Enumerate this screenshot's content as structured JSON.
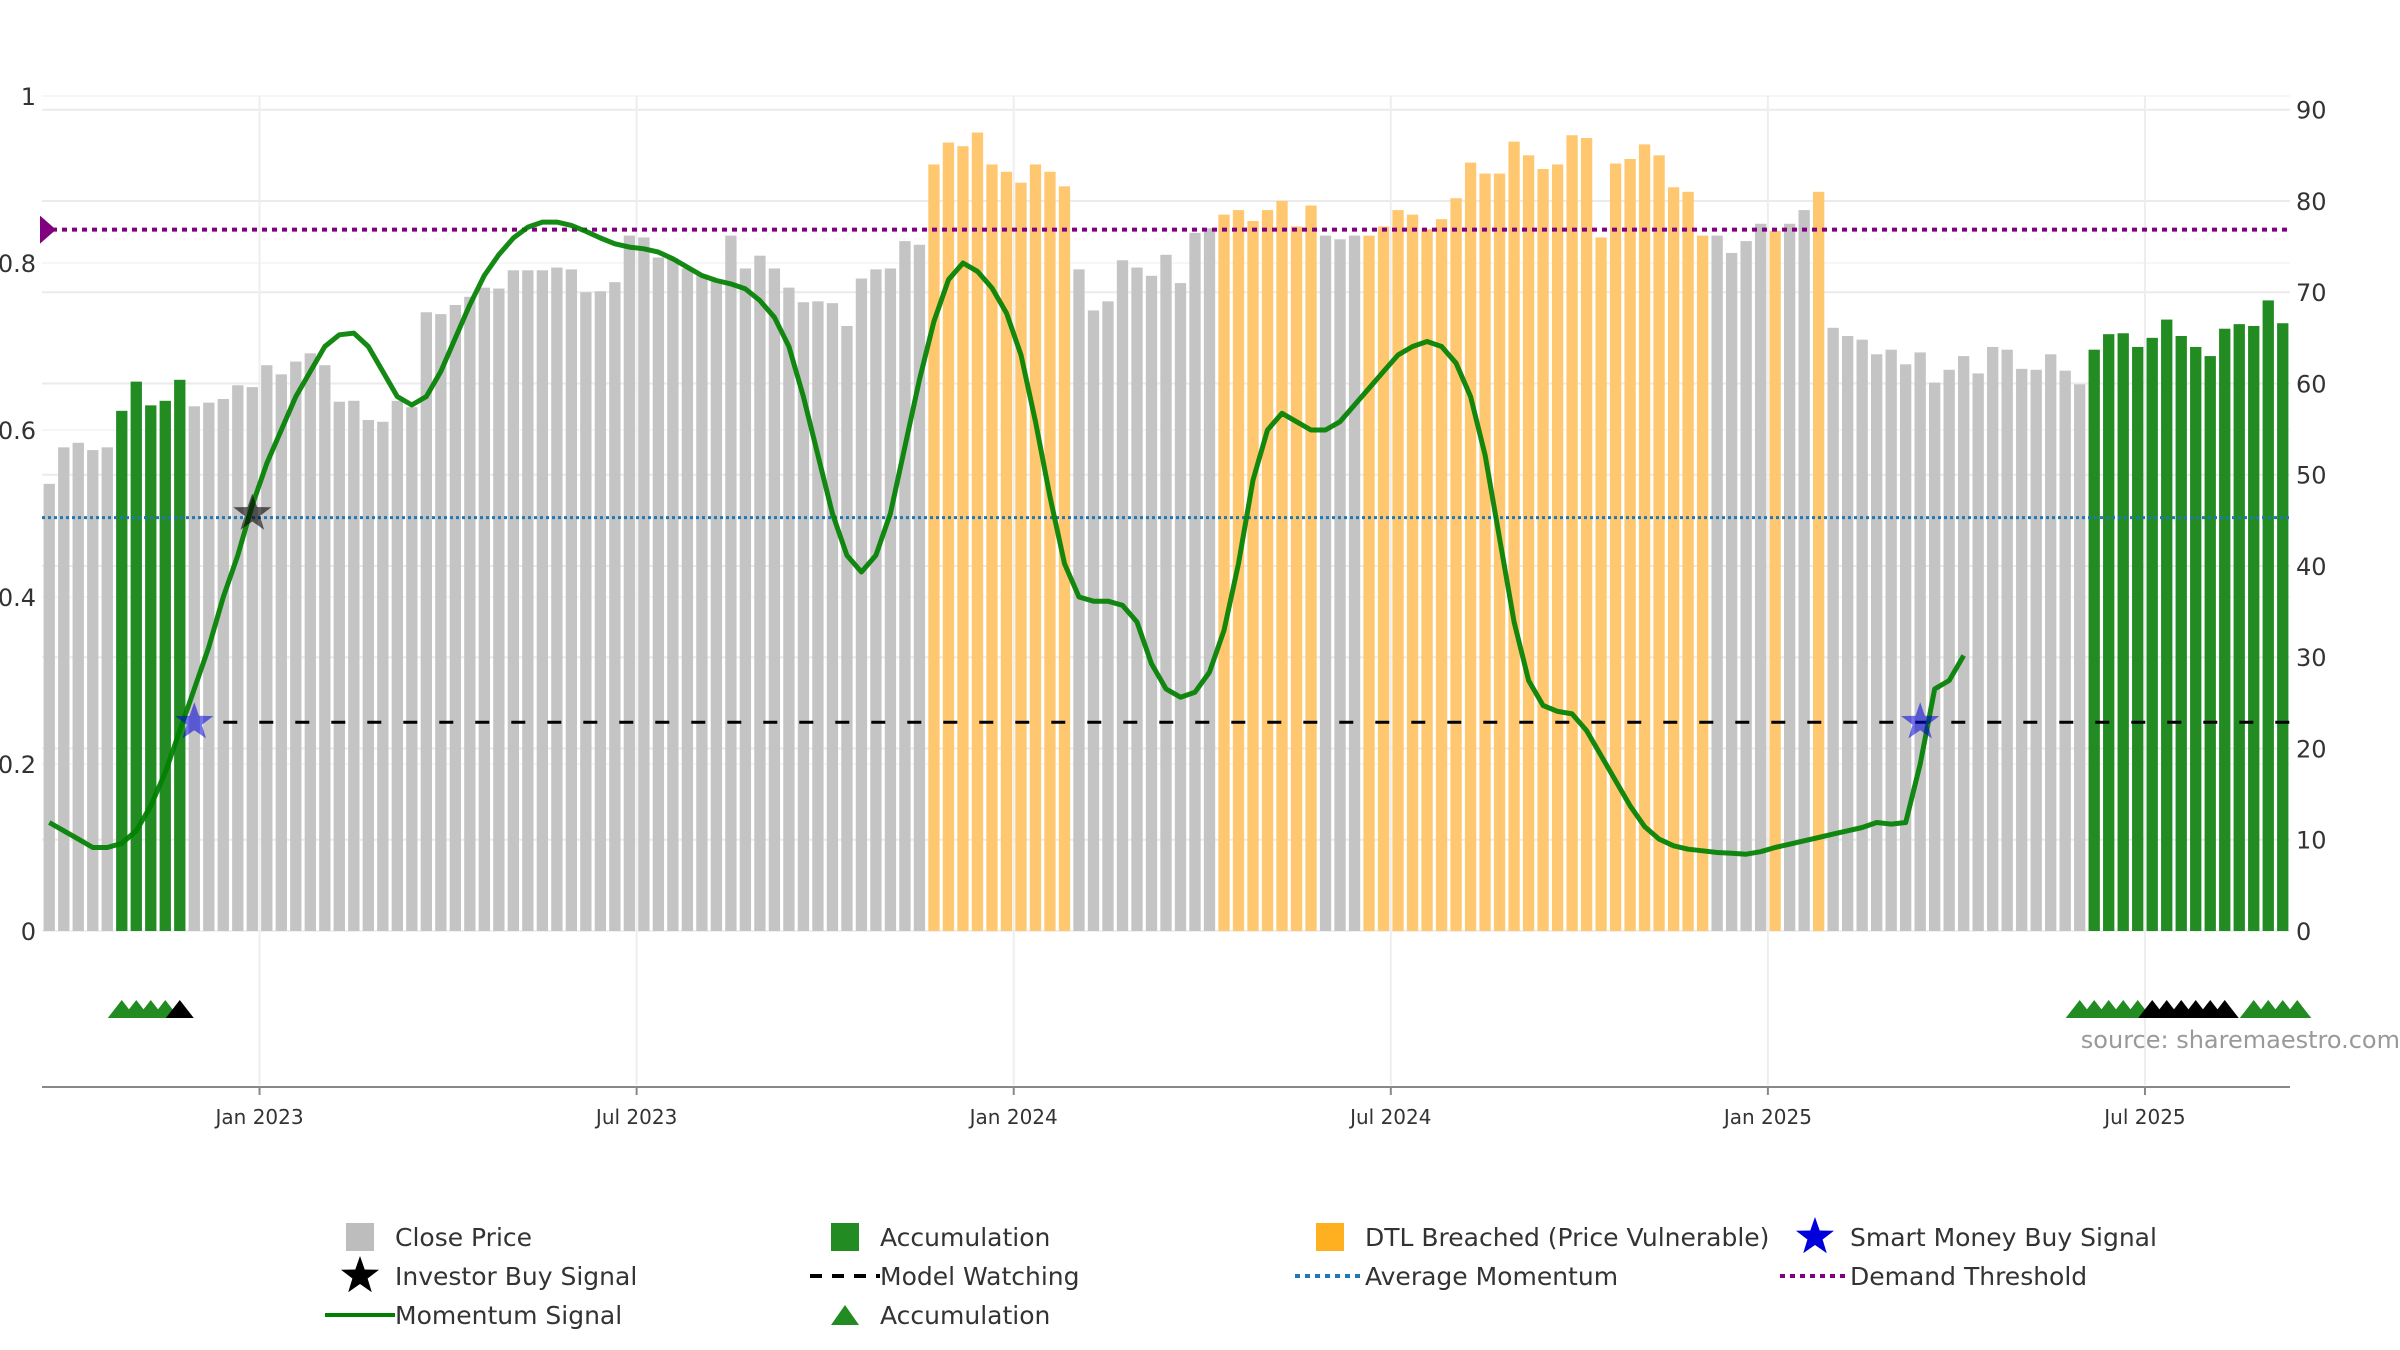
{
  "chart_data": {
    "type": "bar",
    "title": "",
    "xlabel": "",
    "ylabel_left": "",
    "ylabel_right": "",
    "ylim_left": [
      0,
      1
    ],
    "ylim_right": [
      0,
      91.5
    ],
    "left_ticks": [
      "0",
      "0.2",
      "0.4",
      "0.6",
      "0.8",
      "1"
    ],
    "right_ticks": [
      "0",
      "10",
      "20",
      "30",
      "40",
      "50",
      "60",
      "70",
      "80",
      "90"
    ],
    "x_tick_labels": [
      "Jan 2023",
      "Jul 2023",
      "Jan 2024",
      "Jul 2024",
      "Jan 2025",
      "Jul 2025"
    ],
    "x_tick_week_index": [
      14.5,
      40.5,
      66.5,
      92.5,
      118.5,
      144.5
    ],
    "grid": true,
    "source": "source: sharemaestro.com",
    "colors": {
      "close_price": "#c4c4c4",
      "accumulation": "#228b22",
      "dtl_breached": "#ffc870",
      "momentum": "#008000",
      "average_momentum": "#1f77b4",
      "demand_threshold": "#800080",
      "model_watching": "#000000",
      "smart_money": "#0000dd",
      "investor_buy": "#000000"
    },
    "series": [
      {
        "name": "Close Price",
        "start": "Sep 2022",
        "frequency": "weekly",
        "values": [
          49,
          53,
          53.5,
          52.7,
          53,
          57,
          60.2,
          57.6,
          58.1,
          60.4,
          57.5,
          57.9,
          58.3,
          59.8,
          59.6,
          62,
          61,
          62.4,
          63.3,
          62,
          58,
          58.1,
          56,
          55.8,
          58.1,
          57.4,
          67.8,
          67.6,
          68.6,
          69.5,
          70.5,
          70.4,
          72.4,
          72.4,
          72.4,
          72.7,
          72.5,
          70,
          70.1,
          71.1,
          76.2,
          76,
          73.8,
          73.7,
          72.6,
          71.9,
          71.3,
          76.2,
          72.6,
          74,
          72.6,
          70.5,
          68.9,
          69,
          68.8,
          66.3,
          71.5,
          72.5,
          72.6,
          75.6,
          75.2,
          84,
          86.4,
          86,
          87.5,
          84,
          83.2,
          82,
          84,
          83.2,
          81.6,
          72.5,
          68,
          69,
          73.5,
          72.7,
          71.8,
          74.1,
          71,
          76.5,
          77,
          78.5,
          79,
          77.8,
          79,
          80,
          77.2,
          79.5,
          76.2,
          75.8,
          76.2,
          76.2,
          77.2,
          79,
          78.5,
          76.9,
          78,
          80.3,
          84.2,
          83,
          83,
          86.5,
          85,
          83.5,
          84,
          87.2,
          86.9,
          76,
          84.1,
          84.6,
          86.2,
          85,
          81.5,
          81,
          76.2,
          76.2,
          74.3,
          75.6,
          77.5,
          76.7,
          77.5,
          79,
          81,
          66.1,
          65.2,
          64.8,
          63.2,
          63.7,
          62.1,
          63.4,
          60.1,
          61.5,
          63,
          61.1,
          64,
          63.7,
          61.6,
          61.5,
          63.2,
          61.4,
          59.9,
          63.7,
          65.4,
          65.5,
          64,
          65,
          67,
          65.2,
          64,
          63,
          66,
          66.5,
          66.3,
          69.1,
          66.6
        ],
        "highlight_weeks": {
          "accumulation": [
            5,
            6,
            7,
            8,
            9,
            141,
            142,
            143,
            144,
            145,
            146,
            147,
            148,
            149,
            150,
            151,
            152,
            153,
            154
          ],
          "dtl_breached": [
            61,
            62,
            63,
            64,
            65,
            66,
            67,
            68,
            69,
            70,
            81,
            82,
            83,
            84,
            85,
            86,
            87,
            91,
            92,
            93,
            94,
            95,
            96,
            97,
            98,
            99,
            100,
            101,
            102,
            103,
            104,
            105,
            106,
            107,
            108,
            109,
            110,
            111,
            112,
            113,
            114,
            119,
            122
          ]
        }
      },
      {
        "name": "Momentum Signal",
        "points": [
          [
            0,
            0.13
          ],
          [
            1,
            0.12
          ],
          [
            2,
            0.11
          ],
          [
            3,
            0.1
          ],
          [
            4,
            0.1
          ],
          [
            5,
            0.105
          ],
          [
            6,
            0.12
          ],
          [
            7,
            0.15
          ],
          [
            8,
            0.19
          ],
          [
            9,
            0.24
          ],
          [
            10,
            0.29
          ],
          [
            11,
            0.34
          ],
          [
            12,
            0.4
          ],
          [
            13,
            0.45
          ],
          [
            14,
            0.51
          ],
          [
            15,
            0.56
          ],
          [
            16,
            0.6
          ],
          [
            17,
            0.64
          ],
          [
            18,
            0.67
          ],
          [
            19,
            0.7
          ],
          [
            20,
            0.714
          ],
          [
            21,
            0.716
          ],
          [
            22,
            0.7
          ],
          [
            23,
            0.67
          ],
          [
            24,
            0.64
          ],
          [
            25,
            0.63
          ],
          [
            26,
            0.64
          ],
          [
            27,
            0.67
          ],
          [
            28,
            0.71
          ],
          [
            29,
            0.75
          ],
          [
            30,
            0.785
          ],
          [
            31,
            0.81
          ],
          [
            32,
            0.83
          ],
          [
            33,
            0.843
          ],
          [
            34,
            0.849
          ],
          [
            35,
            0.849
          ],
          [
            36,
            0.845
          ],
          [
            37,
            0.838
          ],
          [
            38,
            0.83
          ],
          [
            39,
            0.823
          ],
          [
            40,
            0.819
          ],
          [
            41,
            0.817
          ],
          [
            42,
            0.813
          ],
          [
            43,
            0.805
          ],
          [
            44,
            0.795
          ],
          [
            45,
            0.785
          ],
          [
            46,
            0.779
          ],
          [
            47,
            0.775
          ],
          [
            48,
            0.769
          ],
          [
            49,
            0.755
          ],
          [
            50,
            0.735
          ],
          [
            51,
            0.7
          ],
          [
            52,
            0.64
          ],
          [
            53,
            0.57
          ],
          [
            54,
            0.5
          ],
          [
            55,
            0.45
          ],
          [
            56,
            0.43
          ],
          [
            57,
            0.45
          ],
          [
            58,
            0.5
          ],
          [
            59,
            0.58
          ],
          [
            60,
            0.66
          ],
          [
            61,
            0.73
          ],
          [
            62,
            0.78
          ],
          [
            63,
            0.8
          ],
          [
            64,
            0.79
          ],
          [
            65,
            0.77
          ],
          [
            66,
            0.74
          ],
          [
            67,
            0.69
          ],
          [
            68,
            0.61
          ],
          [
            69,
            0.52
          ],
          [
            70,
            0.44
          ],
          [
            71,
            0.4
          ],
          [
            72,
            0.395
          ],
          [
            73,
            0.395
          ],
          [
            74,
            0.39
          ],
          [
            75,
            0.37
          ],
          [
            76,
            0.32
          ],
          [
            77,
            0.29
          ],
          [
            78,
            0.28
          ],
          [
            79,
            0.286
          ],
          [
            80,
            0.31
          ],
          [
            81,
            0.36
          ],
          [
            82,
            0.44
          ],
          [
            83,
            0.54
          ],
          [
            84,
            0.6
          ],
          [
            85,
            0.62
          ],
          [
            86,
            0.61
          ],
          [
            87,
            0.6
          ],
          [
            88,
            0.6
          ],
          [
            89,
            0.61
          ],
          [
            90,
            0.63
          ],
          [
            91,
            0.65
          ],
          [
            92,
            0.67
          ],
          [
            93,
            0.69
          ],
          [
            94,
            0.7
          ],
          [
            95,
            0.706
          ],
          [
            96,
            0.7
          ],
          [
            97,
            0.68
          ],
          [
            98,
            0.64
          ],
          [
            99,
            0.57
          ],
          [
            100,
            0.47
          ],
          [
            101,
            0.37
          ],
          [
            102,
            0.3
          ],
          [
            103,
            0.27
          ],
          [
            104,
            0.263
          ],
          [
            105,
            0.26
          ],
          [
            106,
            0.24
          ],
          [
            107,
            0.21
          ],
          [
            108,
            0.18
          ],
          [
            109,
            0.15
          ],
          [
            110,
            0.125
          ],
          [
            111,
            0.11
          ],
          [
            112,
            0.102
          ],
          [
            113,
            0.098
          ],
          [
            114,
            0.096
          ],
          [
            115,
            0.094
          ],
          [
            116,
            0.093
          ],
          [
            117,
            0.092
          ],
          [
            118,
            0.095
          ],
          [
            119,
            0.1
          ],
          [
            120,
            0.104
          ],
          [
            121,
            0.108
          ],
          [
            122,
            0.112
          ],
          [
            123,
            0.116
          ],
          [
            124,
            0.12
          ],
          [
            125,
            0.124
          ],
          [
            126,
            0.13
          ],
          [
            127,
            0.128
          ],
          [
            128,
            0.13
          ],
          [
            129,
            0.2
          ],
          [
            130,
            0.29
          ],
          [
            131,
            0.3
          ],
          [
            132,
            0.33
          ]
        ]
      },
      {
        "name": "Average Momentum",
        "value": 0.495
      },
      {
        "name": "Demand Threshold",
        "value": 0.84
      },
      {
        "name": "Model Watching",
        "value": 0.25,
        "from_week": 12
      },
      {
        "name": "Smart Money Buy Signal",
        "points": [
          [
            10,
            0.25
          ],
          [
            129,
            0.25
          ]
        ]
      },
      {
        "name": "Investor Buy Signal",
        "points": [
          [
            14,
            0.5
          ]
        ]
      },
      {
        "name": "Accumulation",
        "green_weeks": [
          5,
          6,
          7,
          8,
          140,
          141,
          142,
          143,
          144,
          152,
          153,
          154,
          155
        ],
        "black_weeks": [
          9,
          145,
          146,
          147,
          148,
          149,
          150
        ]
      }
    ],
    "legend": {
      "placement": "bottom",
      "items": [
        {
          "label": "Close Price",
          "symbol": "square",
          "color": "#bdbdbd"
        },
        {
          "label": "Accumulation",
          "symbol": "square",
          "color": "#228b22"
        },
        {
          "label": "DTL Breached (Price Vulnerable)",
          "symbol": "square",
          "color": "#ffb020"
        },
        {
          "label": "Smart Money Buy Signal",
          "symbol": "star",
          "color": "#0000dd"
        },
        {
          "label": "Investor Buy Signal",
          "symbol": "star",
          "color": "#000000"
        },
        {
          "label": "Model Watching",
          "symbol": "dashed-line",
          "color": "#000000"
        },
        {
          "label": "Average Momentum",
          "symbol": "dotted-line",
          "color": "#1f77b4"
        },
        {
          "label": "Demand Threshold",
          "symbol": "dotted-line",
          "color": "#800080"
        },
        {
          "label": "Momentum Signal",
          "symbol": "line",
          "color": "#008000"
        },
        {
          "label": "Accumulation",
          "symbol": "triangle",
          "color": "#228b22"
        }
      ]
    }
  }
}
